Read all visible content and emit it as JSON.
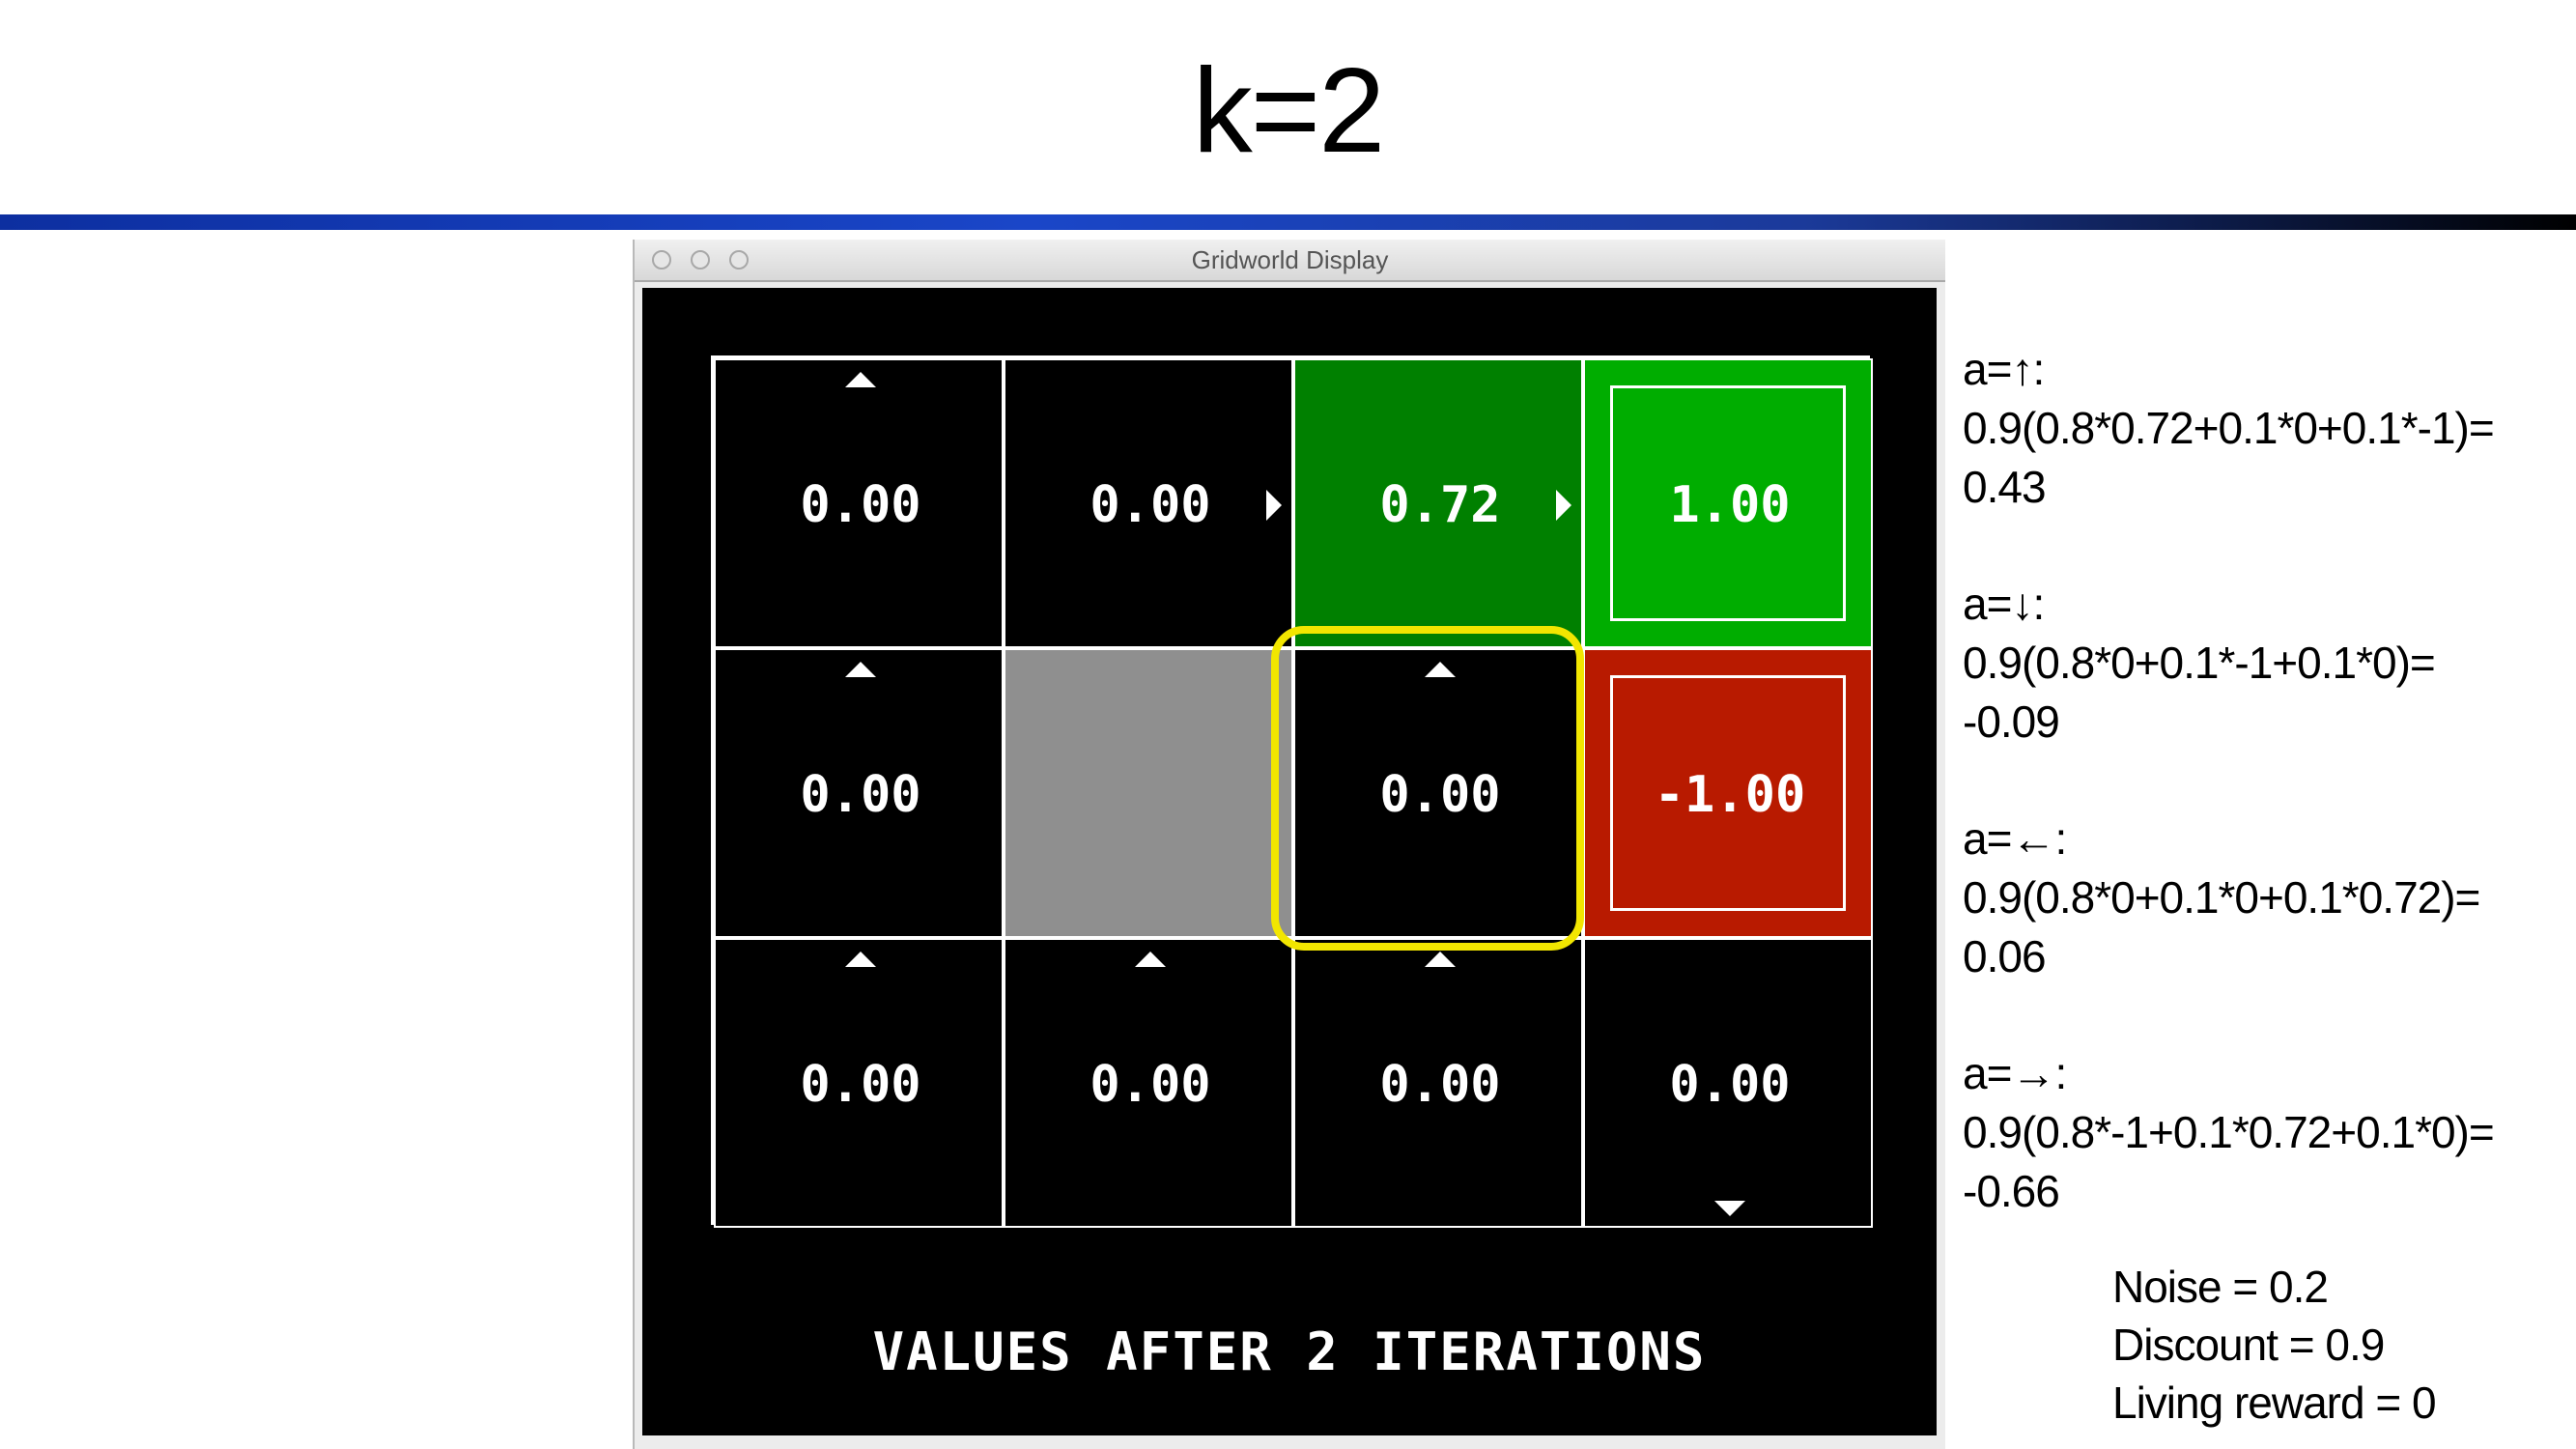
{
  "slide": {
    "title": "k=2"
  },
  "window": {
    "title": "Gridworld Display"
  },
  "grid": {
    "caption": "VALUES AFTER 2 ITERATIONS",
    "cells": [
      {
        "value": "0.00",
        "arrow": "up"
      },
      {
        "value": "0.00",
        "arrow": "right"
      },
      {
        "value": "0.72",
        "arrow": "right"
      },
      {
        "value": "1.00",
        "arrow": "none"
      },
      {
        "value": "0.00",
        "arrow": "up"
      },
      {
        "value": "",
        "arrow": "none"
      },
      {
        "value": "0.00",
        "arrow": "up"
      },
      {
        "value": "-1.00",
        "arrow": "none"
      },
      {
        "value": "0.00",
        "arrow": "up"
      },
      {
        "value": "0.00",
        "arrow": "up"
      },
      {
        "value": "0.00",
        "arrow": "up"
      },
      {
        "value": "0.00",
        "arrow": "down"
      }
    ],
    "colors": {
      "empty": "#000000",
      "value_072": "#008000",
      "positive_terminal": "#00ad00",
      "negative_terminal": "#b81a00",
      "wall": "#8f8f8f",
      "highlight": "#f2e600"
    }
  },
  "calculations": [
    {
      "action": "a=↑:",
      "formula": "0.9(0.8*0.72+0.1*0+0.1*-1)=",
      "result": "0.43"
    },
    {
      "action": "a=↓:",
      "formula": "0.9(0.8*0+0.1*-1+0.1*0)=",
      "result": "-0.09"
    },
    {
      "action": "a=←:",
      "formula": "0.9(0.8*0+0.1*0+0.1*0.72)=",
      "result": "0.06"
    },
    {
      "action": "a=→:",
      "formula": "0.9(0.8*-1+0.1*0.72+0.1*0)=",
      "result": "-0.66"
    }
  ],
  "parameters": {
    "noise": "Noise = 0.2",
    "discount": "Discount = 0.9",
    "living_reward": "Living reward = 0"
  }
}
